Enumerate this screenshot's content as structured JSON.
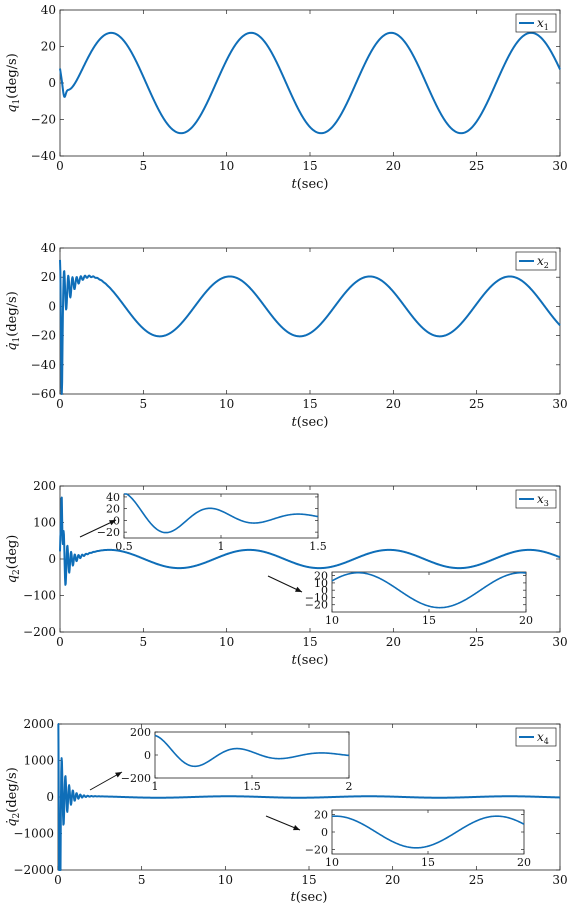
{
  "colors": {
    "series": "#0f6eb8",
    "axis": "#222222",
    "background": "#ffffff"
  },
  "chart_data": [
    {
      "type": "line",
      "ylabel": "q1(deg/s)",
      "ylabel_html": "<tspan font-style='italic'>q</tspan><tspan font-size='9' dy='3'>1</tspan><tspan dy='-3'>(deg/s)</tspan>",
      "xlabel": "t(sec)",
      "xlim": [
        0,
        30
      ],
      "ylim": [
        -40,
        40
      ],
      "xticks": [
        0,
        5,
        10,
        15,
        20,
        25,
        30
      ],
      "yticks": [
        -40,
        -20,
        0,
        20,
        40
      ],
      "legend": {
        "label": "x1",
        "placement": "top-right"
      },
      "series": [
        {
          "name": "x1",
          "model": {
            "kind": "settle_sine",
            "amp": 27.5,
            "period": 8.4,
            "phase_deg": -3,
            "offset": 0,
            "start": 8,
            "settle": 0.45,
            "dip": -6
          }
        }
      ],
      "insets": []
    },
    {
      "type": "line",
      "ylabel": "q̇1(deg/s)",
      "ylabel_html": "<tspan font-style='italic'>q̇</tspan><tspan font-size='9' dy='3'>1</tspan><tspan dy='-3'>(deg/s)</tspan>",
      "xlabel": "t(sec)",
      "xlim": [
        0,
        30
      ],
      "ylim": [
        -60,
        40
      ],
      "xticks": [
        0,
        5,
        10,
        15,
        20,
        25,
        30
      ],
      "yticks": [
        -60,
        -40,
        -20,
        0,
        20,
        40
      ],
      "legend": {
        "label": "x2",
        "placement": "top-right"
      },
      "series": [
        {
          "name": "x2",
          "model": {
            "kind": "transient_sine",
            "amp": 20.5,
            "period": 8.4,
            "phase_deg": 45,
            "t0_val": 0,
            "spike": -52,
            "osc_amp": 28,
            "osc_freq": 4.0,
            "decay": 2.2
          }
        }
      ],
      "insets": []
    },
    {
      "type": "line",
      "ylabel": "q2(deg)",
      "ylabel_html": "<tspan font-style='italic'>q</tspan><tspan font-size='9' dy='3'>2</tspan><tspan dy='-3'>(deg)</tspan>",
      "xlabel": "t(sec)",
      "xlim": [
        0,
        30
      ],
      "ylim": [
        -200,
        200
      ],
      "xticks": [
        0,
        5,
        10,
        15,
        20,
        25,
        30
      ],
      "yticks": [
        -200,
        -100,
        0,
        100,
        200
      ],
      "legend": {
        "label": "x3",
        "placement": "top-right"
      },
      "series": [
        {
          "name": "x3",
          "model": {
            "kind": "transient_sine",
            "amp": 25,
            "period": 8.4,
            "phase_deg": -5,
            "t0_val": -140,
            "spike": 180,
            "osc_amp": 170,
            "osc_freq": 4.5,
            "decay": 3.0
          }
        }
      ],
      "insets": [
        {
          "xlim": [
            0.5,
            1.5
          ],
          "ylim": [
            -30,
            45
          ],
          "xticks": [
            0.5,
            1,
            1.5
          ],
          "yticks": [
            -20,
            0,
            20,
            40
          ],
          "model": {
            "kind": "inset_decay",
            "amp": 42,
            "freq": 2.2,
            "decay": 2.2,
            "phase_deg": 90,
            "t0": 0.5,
            "bias": 5
          }
        },
        {
          "xlim": [
            10,
            20
          ],
          "ylim": [
            -30,
            25
          ],
          "xticks": [
            10,
            15,
            20
          ],
          "yticks": [
            -20,
            -10,
            0,
            10,
            20
          ],
          "model": {
            "kind": "inset_sine",
            "amp": 24,
            "period": 8.4,
            "phase_deg": -5,
            "offset": 0
          }
        }
      ]
    },
    {
      "type": "line",
      "ylabel": "q̇2(deg/s)",
      "ylabel_html": "<tspan font-style='italic'>q̇</tspan><tspan font-size='9' dy='3'>2</tspan><tspan dy='-3'>(deg/s)</tspan>",
      "xlabel": "t(sec)",
      "xlim": [
        0,
        30
      ],
      "ylim": [
        -2000,
        2000
      ],
      "xticks": [
        0,
        5,
        10,
        15,
        20,
        25,
        30
      ],
      "yticks": [
        -2000,
        -1000,
        0,
        1000,
        2000
      ],
      "legend": {
        "label": "x4",
        "placement": "top-right"
      },
      "series": [
        {
          "name": "x4",
          "model": {
            "kind": "transient_sine",
            "amp": 20,
            "period": 8.4,
            "phase_deg": 45,
            "t0_val": 2000,
            "spike": -2000,
            "osc_amp": 2000,
            "osc_freq": 4.5,
            "decay": 2.8
          }
        }
      ],
      "insets": [
        {
          "xlim": [
            1,
            2
          ],
          "ylim": [
            -200,
            200
          ],
          "xticks": [
            1,
            1.5,
            2
          ],
          "yticks": [
            -200,
            0,
            200
          ],
          "model": {
            "kind": "inset_decay",
            "amp": 170,
            "freq": 2.3,
            "decay": 2.6,
            "phase_deg": 90,
            "t0": 1,
            "bias": 0
          }
        },
        {
          "xlim": [
            10,
            20
          ],
          "ylim": [
            -25,
            25
          ],
          "xticks": [
            10,
            15,
            20
          ],
          "yticks": [
            -20,
            0,
            20
          ],
          "model": {
            "kind": "inset_sine",
            "amp": 18,
            "period": 8.4,
            "phase_deg": 45,
            "offset": 0
          }
        }
      ]
    }
  ]
}
